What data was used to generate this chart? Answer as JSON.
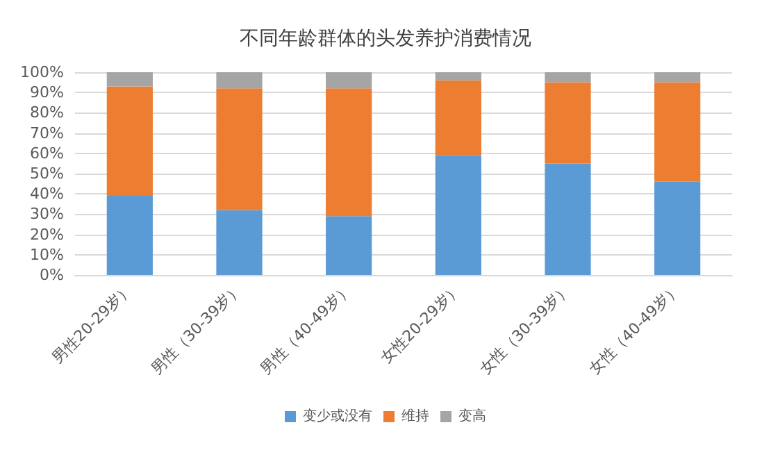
{
  "chart_data": {
    "type": "bar",
    "stacked": true,
    "title": "不同年龄群体的头发养护消费情况",
    "categories": [
      "男性20-29岁）",
      "男性（30-39岁）",
      "男性（40-49岁）",
      "女性20-29岁）",
      "女性（30-39岁）",
      "女性（40-49岁）"
    ],
    "series": [
      {
        "name": "变少或没有",
        "color": "#5b9bd5",
        "values": [
          39,
          32,
          29,
          59,
          55,
          46
        ]
      },
      {
        "name": "维持",
        "color": "#ed7d31",
        "values": [
          54,
          60,
          63,
          37,
          40,
          49
        ]
      },
      {
        "name": "变高",
        "color": "#a5a5a5",
        "values": [
          7,
          8,
          8,
          4,
          5,
          5
        ]
      }
    ],
    "ylim": [
      0,
      100
    ],
    "yticks": [
      {
        "value": 0,
        "label": "0%"
      },
      {
        "value": 10,
        "label": "10%"
      },
      {
        "value": 20,
        "label": "20%"
      },
      {
        "value": 30,
        "label": "30%"
      },
      {
        "value": 40,
        "label": "40%"
      },
      {
        "value": 50,
        "label": "50%"
      },
      {
        "value": 60,
        "label": "60%"
      },
      {
        "value": 70,
        "label": "70%"
      },
      {
        "value": 80,
        "label": "80%"
      },
      {
        "value": 90,
        "label": "90%"
      },
      {
        "value": 100,
        "label": "100%"
      }
    ],
    "grid": "y",
    "legend": "bottom"
  }
}
